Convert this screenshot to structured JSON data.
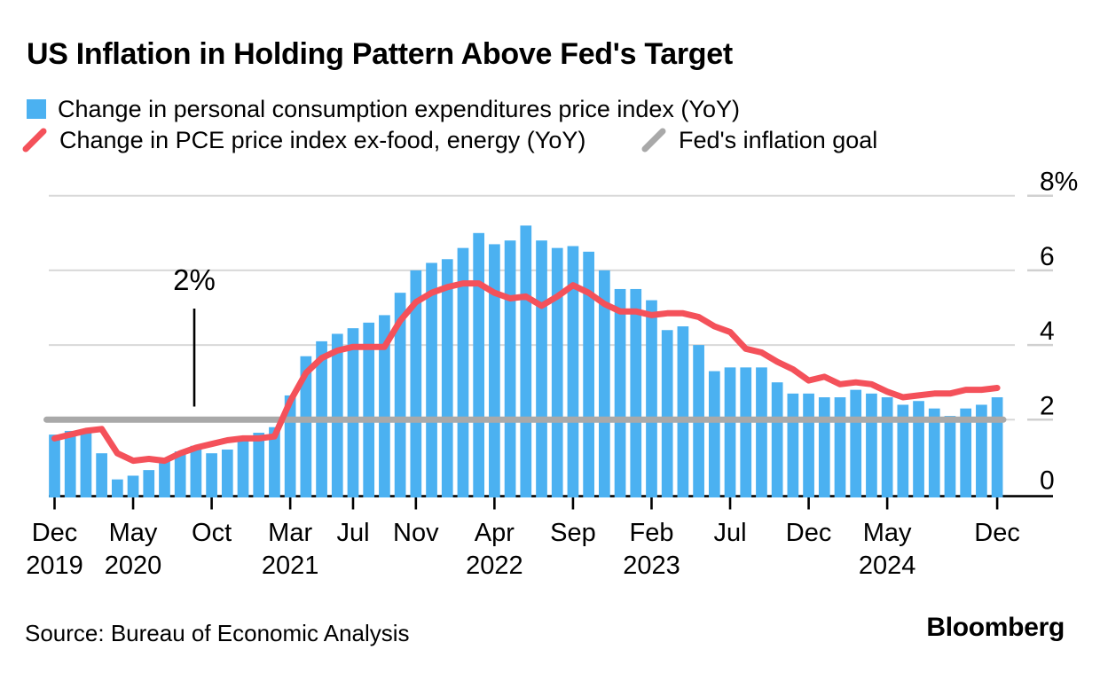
{
  "title": "US Inflation in Holding Pattern Above Fed's Target",
  "legend": [
    {
      "label": "Change in personal consumption expenditures price index (YoY)",
      "marker": "square",
      "color": "#4bb1f1"
    },
    {
      "label": "Change in PCE price index ex-food, energy (YoY)",
      "marker": "slash",
      "color": "#f4515a"
    },
    {
      "label": "Fed's inflation goal",
      "marker": "slash",
      "color": "#a9a9a9"
    }
  ],
  "annotation": {
    "label": "2%"
  },
  "source": "Source: Bureau of Economic Analysis",
  "brand": "Bloomberg",
  "colors": {
    "bar_blue": "#4bb1f1",
    "line_red": "#f4515a",
    "goal_gray": "#a9a9a9",
    "gridline": "#d8d8d8",
    "right_dash": "#d0d0d0",
    "axis_black": "#000000"
  },
  "chart_data": {
    "type": "bar+line",
    "title": "US Inflation in Holding Pattern Above Fed's Target",
    "x": [
      "2019-12",
      "2020-01",
      "2020-02",
      "2020-03",
      "2020-04",
      "2020-05",
      "2020-06",
      "2020-07",
      "2020-08",
      "2020-09",
      "2020-10",
      "2020-11",
      "2020-12",
      "2021-01",
      "2021-02",
      "2021-03",
      "2021-04",
      "2021-05",
      "2021-06",
      "2021-07",
      "2021-08",
      "2021-09",
      "2021-10",
      "2021-11",
      "2021-12",
      "2022-01",
      "2022-02",
      "2022-03",
      "2022-04",
      "2022-05",
      "2022-06",
      "2022-07",
      "2022-08",
      "2022-09",
      "2022-10",
      "2022-11",
      "2022-12",
      "2023-01",
      "2023-02",
      "2023-03",
      "2023-04",
      "2023-05",
      "2023-06",
      "2023-07",
      "2023-08",
      "2023-09",
      "2023-10",
      "2023-11",
      "2023-12",
      "2024-01",
      "2024-02",
      "2024-03",
      "2024-04",
      "2024-05",
      "2024-06",
      "2024-07",
      "2024-08",
      "2024-09",
      "2024-10",
      "2024-11",
      "2024-12"
    ],
    "series": [
      {
        "name": "Change in personal consumption expenditures price index (YoY)",
        "type": "bar",
        "values": [
          1.6,
          1.7,
          1.7,
          1.1,
          0.4,
          0.5,
          0.65,
          0.9,
          1.15,
          1.3,
          1.1,
          1.2,
          1.45,
          1.65,
          1.8,
          2.65,
          3.7,
          4.1,
          4.3,
          4.45,
          4.6,
          4.8,
          5.4,
          6.0,
          6.2,
          6.3,
          6.6,
          7.0,
          6.7,
          6.8,
          7.2,
          6.8,
          6.6,
          6.65,
          6.5,
          6.0,
          5.5,
          5.5,
          5.2,
          4.4,
          4.5,
          4.0,
          3.3,
          3.4,
          3.4,
          3.4,
          3.0,
          2.7,
          2.7,
          2.6,
          2.6,
          2.8,
          2.7,
          2.6,
          2.4,
          2.5,
          2.3,
          2.1,
          2.3,
          2.4,
          2.6
        ]
      },
      {
        "name": "Change in PCE price index ex-food, energy (YoY)",
        "type": "line",
        "values": [
          1.5,
          1.6,
          1.7,
          1.75,
          1.1,
          0.9,
          0.95,
          0.9,
          1.1,
          1.25,
          1.35,
          1.45,
          1.5,
          1.5,
          1.55,
          2.5,
          3.25,
          3.65,
          3.85,
          3.95,
          3.95,
          3.95,
          4.65,
          5.15,
          5.4,
          5.55,
          5.65,
          5.65,
          5.4,
          5.25,
          5.3,
          5.05,
          5.3,
          5.6,
          5.4,
          5.1,
          4.9,
          4.9,
          4.8,
          4.85,
          4.85,
          4.75,
          4.5,
          4.35,
          3.9,
          3.8,
          3.55,
          3.35,
          3.05,
          3.15,
          2.95,
          3.0,
          2.95,
          2.75,
          2.6,
          2.65,
          2.7,
          2.7,
          2.8,
          2.8,
          2.85
        ]
      },
      {
        "name": "Fed's inflation goal",
        "type": "hline",
        "value": 2
      }
    ],
    "y_axis": {
      "range": [
        0,
        8
      ],
      "grid": true,
      "ticks": [
        {
          "value": 8,
          "label": "8%"
        },
        {
          "value": 6,
          "label": "6"
        },
        {
          "value": 4,
          "label": "4"
        },
        {
          "value": 2,
          "label": "2"
        },
        {
          "value": 0,
          "label": "0"
        }
      ]
    },
    "x_axis": {
      "ticks": [
        {
          "index": 0,
          "month": "Dec",
          "year": "2019"
        },
        {
          "index": 5,
          "month": "May",
          "year": "2020"
        },
        {
          "index": 10,
          "month": "Oct",
          "year": ""
        },
        {
          "index": 15,
          "month": "Mar",
          "year": "2021"
        },
        {
          "index": 19,
          "month": "Jul",
          "year": ""
        },
        {
          "index": 23,
          "month": "Nov",
          "year": ""
        },
        {
          "index": 28,
          "month": "Apr",
          "year": "2022"
        },
        {
          "index": 33,
          "month": "Sep",
          "year": ""
        },
        {
          "index": 38,
          "month": "Feb",
          "year": "2023"
        },
        {
          "index": 43,
          "month": "Jul",
          "year": ""
        },
        {
          "index": 48,
          "month": "Dec",
          "year": ""
        },
        {
          "index": 53,
          "month": "May",
          "year": "2024"
        },
        {
          "index": 60,
          "month": "Dec",
          "year": ""
        }
      ]
    },
    "legend_position": "top"
  }
}
